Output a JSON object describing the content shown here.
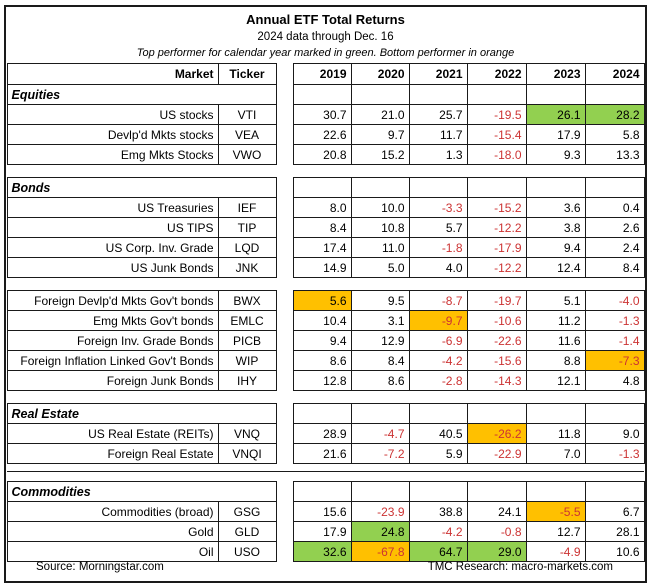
{
  "header": {
    "title": "Annual ETF Total Returns",
    "subtitle": "2024 data through Dec. 16",
    "note": "Top performer for calendar year marked in green. Bottom performer in orange"
  },
  "columns": {
    "market_label": "Market",
    "ticker_label": "Ticker",
    "years": [
      "2019",
      "2020",
      "2021",
      "2022",
      "2023",
      "2024"
    ]
  },
  "colors": {
    "top_performer_green": "#92D050",
    "bottom_performer_orange": "#FFC000",
    "negative_red": "#CC3333",
    "border_black": "#1A1A1A"
  },
  "chart_data": {
    "type": "table",
    "title": "Annual ETF Total Returns",
    "subtitle": "2024 data through Dec. 16",
    "legend_note": "Top performer for calendar year marked in green. Bottom performer in orange",
    "columns": [
      "Market",
      "Ticker",
      "2019",
      "2020",
      "2021",
      "2022",
      "2023",
      "2024"
    ],
    "sections": [
      {
        "label": "Equities",
        "groups": [
          [
            {
              "market": "US stocks",
              "ticker": "VTI",
              "values": [
                "30.7",
                "21.0",
                "25.7",
                "-19.5",
                "26.1",
                "28.2"
              ],
              "hl": [
                null,
                null,
                null,
                null,
                "green",
                "green"
              ]
            },
            {
              "market": "Devlp'd Mkts stocks",
              "ticker": "VEA",
              "values": [
                "22.6",
                "9.7",
                "11.7",
                "-15.4",
                "17.9",
                "5.8"
              ]
            },
            {
              "market": "Emg Mkts Stocks",
              "ticker": "VWO",
              "values": [
                "20.8",
                "15.2",
                "1.3",
                "-18.0",
                "9.3",
                "13.3"
              ]
            }
          ]
        ]
      },
      {
        "label": "Bonds",
        "groups": [
          [
            {
              "market": "US Treasuries",
              "ticker": "IEF",
              "values": [
                "8.0",
                "10.0",
                "-3.3",
                "-15.2",
                "3.6",
                "0.4"
              ]
            },
            {
              "market": "US TIPS",
              "ticker": "TIP",
              "values": [
                "8.4",
                "10.8",
                "5.7",
                "-12.2",
                "3.8",
                "2.6"
              ]
            },
            {
              "market": "US Corp. Inv. Grade",
              "ticker": "LQD",
              "values": [
                "17.4",
                "11.0",
                "-1.8",
                "-17.9",
                "9.4",
                "2.4"
              ]
            },
            {
              "market": "US Junk Bonds",
              "ticker": "JNK",
              "values": [
                "14.9",
                "5.0",
                "4.0",
                "-12.2",
                "12.4",
                "8.4"
              ]
            }
          ],
          [
            {
              "market": "Foreign Devlp'd Mkts Gov't bonds",
              "ticker": "BWX",
              "values": [
                "5.6",
                "9.5",
                "-8.7",
                "-19.7",
                "5.1",
                "-4.0"
              ],
              "hl": [
                "orange",
                null,
                null,
                null,
                null,
                null
              ]
            },
            {
              "market": "Emg Mkts Gov't bonds",
              "ticker": "EMLC",
              "values": [
                "10.4",
                "3.1",
                "-9.7",
                "-10.6",
                "11.2",
                "-1.3"
              ],
              "hl": [
                null,
                null,
                "orange",
                null,
                null,
                null
              ]
            },
            {
              "market": "Foreign Inv. Grade Bonds",
              "ticker": "PICB",
              "values": [
                "9.4",
                "12.9",
                "-6.9",
                "-22.6",
                "11.6",
                "-1.4"
              ]
            },
            {
              "market": "Foreign Inflation Linked Gov't Bonds",
              "ticker": "WIP",
              "values": [
                "8.6",
                "8.4",
                "-4.2",
                "-15.6",
                "8.8",
                "-7.3"
              ],
              "hl": [
                null,
                null,
                null,
                null,
                null,
                "orange"
              ]
            },
            {
              "market": "Foreign Junk Bonds",
              "ticker": "IHY",
              "values": [
                "12.8",
                "8.6",
                "-2.8",
                "-14.3",
                "12.1",
                "4.8"
              ]
            }
          ]
        ]
      },
      {
        "label": "Real Estate",
        "groups": [
          [
            {
              "market": "US Real Estate (REITs)",
              "ticker": "VNQ",
              "values": [
                "28.9",
                "-4.7",
                "40.5",
                "-26.2",
                "11.8",
                "9.0"
              ],
              "hl": [
                null,
                null,
                null,
                "orange",
                null,
                null
              ]
            },
            {
              "market": "Foreign Real Estate",
              "ticker": "VNQI",
              "values": [
                "21.6",
                "-7.2",
                "5.9",
                "-22.9",
                "7.0",
                "-1.3"
              ]
            }
          ]
        ]
      },
      {
        "label": "Commodities",
        "groups": [
          [
            {
              "market": "Commodities (broad)",
              "ticker": "GSG",
              "values": [
                "15.6",
                "-23.9",
                "38.8",
                "24.1",
                "-5.5",
                "6.7"
              ],
              "hl": [
                null,
                null,
                null,
                null,
                "orange",
                null
              ]
            },
            {
              "market": "Gold",
              "ticker": "GLD",
              "values": [
                "17.9",
                "24.8",
                "-4.2",
                "-0.8",
                "12.7",
                "28.1"
              ],
              "hl": [
                null,
                "green",
                null,
                null,
                null,
                null
              ]
            },
            {
              "market": "Oil",
              "ticker": "USO",
              "values": [
                "32.6",
                "-67.8",
                "64.7",
                "29.0",
                "-4.9",
                "10.6"
              ],
              "hl": [
                "green",
                "orange",
                "green",
                "green",
                null,
                null
              ]
            }
          ]
        ]
      }
    ]
  },
  "footer": {
    "source": "Source: Morningstar.com",
    "research": "TMC Research: macro-markets.com"
  }
}
